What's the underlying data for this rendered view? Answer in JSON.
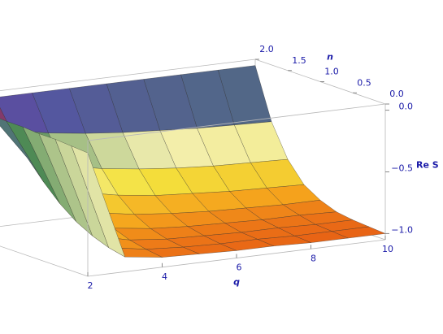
{
  "chart_data": {
    "type": "surface",
    "x_label": "q",
    "y_label": "n",
    "z_label": "Re S",
    "x": [
      2,
      3,
      4,
      5,
      6,
      7,
      8,
      9,
      10
    ],
    "y": [
      0,
      0.25,
      0.5,
      0.75,
      1,
      1.25,
      1.5,
      1.75,
      2
    ],
    "z": [
      [
        -0.05,
        -0.04,
        -0.03,
        -0.03,
        -0.02,
        -0.02,
        -0.01,
        -0.01,
        0
      ],
      [
        -0.93,
        -0.9,
        -0.85,
        -0.78,
        -0.68,
        -0.55,
        -0.4,
        -0.22,
        0
      ],
      [
        -0.97,
        -0.95,
        -0.92,
        -0.87,
        -0.79,
        -0.67,
        -0.5,
        -0.28,
        0
      ],
      [
        -0.98,
        -0.97,
        -0.95,
        -0.91,
        -0.84,
        -0.73,
        -0.56,
        -0.32,
        0
      ],
      [
        -0.99,
        -0.98,
        -0.96,
        -0.93,
        -0.87,
        -0.77,
        -0.6,
        -0.35,
        0
      ],
      [
        -0.99,
        -0.98,
        -0.97,
        -0.94,
        -0.89,
        -0.79,
        -0.63,
        -0.37,
        0
      ],
      [
        -1,
        -0.99,
        -0.97,
        -0.95,
        -0.9,
        -0.81,
        -0.65,
        -0.39,
        0
      ],
      [
        -1,
        -0.99,
        -0.98,
        -0.95,
        -0.91,
        -0.82,
        -0.66,
        -0.4,
        0
      ],
      [
        -1,
        -0.99,
        -0.98,
        -0.96,
        -0.91,
        -0.83,
        -0.67,
        -0.41,
        0
      ]
    ],
    "xlim": [
      2,
      10
    ],
    "ylim": [
      0,
      2
    ],
    "zlim": [
      -1.05,
      0.05
    ],
    "xticks": [
      2,
      4,
      6,
      8,
      10
    ],
    "yticks": [
      {
        "value": 0,
        "label": "0.0"
      },
      {
        "value": 0.5,
        "label": "0.5"
      },
      {
        "value": 1,
        "label": "1.0"
      },
      {
        "value": 1.5,
        "label": "1.5"
      },
      {
        "value": 2,
        "label": "2.0"
      }
    ],
    "zticks": [
      {
        "value": 0,
        "label": "0.0"
      },
      {
        "value": -0.5,
        "label": "−0.5"
      },
      {
        "value": -1,
        "label": "−1.0"
      }
    ],
    "color_scale": [
      "#e24a12",
      "#f5a21c",
      "#f4e23c",
      "#f3efb0",
      "#4d8a55",
      "#5552a6",
      "#c41818"
    ],
    "tick_color": "#1a1aa8"
  }
}
